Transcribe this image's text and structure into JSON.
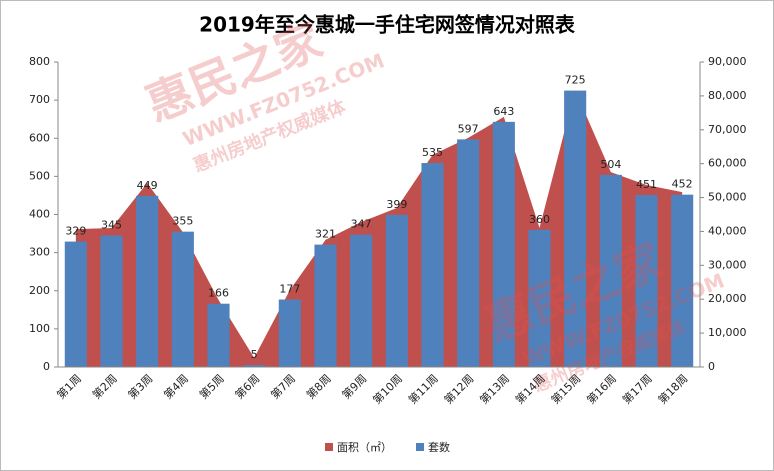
{
  "chart_data": {
    "type": "bar_area",
    "title": "2019年至今惠城一手住宅网签情况对照表",
    "categories": [
      "第1周",
      "第2周",
      "第3周",
      "第4周",
      "第5周",
      "第6周",
      "第7周",
      "第8周",
      "第9周",
      "第10周",
      "第11周",
      "第12周",
      "第13周",
      "第14周",
      "第15周",
      "第16周",
      "第17周",
      "第18周"
    ],
    "series": [
      {
        "name": "面积（㎡）",
        "color": "#c0504d",
        "axis": "y2",
        "kind": "area",
        "values": [
          40700,
          41000,
          54300,
          39800,
          19800,
          2700,
          22700,
          37500,
          42800,
          46900,
          62600,
          67600,
          73800,
          41000,
          81700,
          57500,
          53700,
          51600
        ]
      },
      {
        "name": "套数",
        "color": "#4f81bd",
        "kind": "bar",
        "values": [
          329,
          345,
          449,
          355,
          166,
          5,
          177,
          321,
          347,
          399,
          535,
          597,
          643,
          360,
          725,
          504,
          451,
          452
        ]
      }
    ],
    "ylim": [
      0,
      800
    ],
    "yticks": [
      0,
      100,
      200,
      300,
      400,
      500,
      600,
      700,
      800
    ],
    "y2lim": [
      0,
      90000
    ],
    "y2ticks": [
      0,
      {
        "value": 10000,
        "label": "10,000"
      },
      {
        "value": 20000,
        "label": "20,000"
      },
      {
        "value": 30000,
        "label": "30,000"
      },
      {
        "value": 40000,
        "label": "40,000"
      },
      {
        "value": 50000,
        "label": "50,000"
      },
      {
        "value": 60000,
        "label": "60,000"
      },
      {
        "value": 70000,
        "label": "70,000"
      },
      {
        "value": 80000,
        "label": "80,000"
      },
      {
        "value": 90000,
        "label": "90,000"
      }
    ],
    "legend": "bottom",
    "watermark": [
      "惠民之家",
      "WWW.FZ0752.COM",
      "惠州房地产权威媒体"
    ]
  }
}
